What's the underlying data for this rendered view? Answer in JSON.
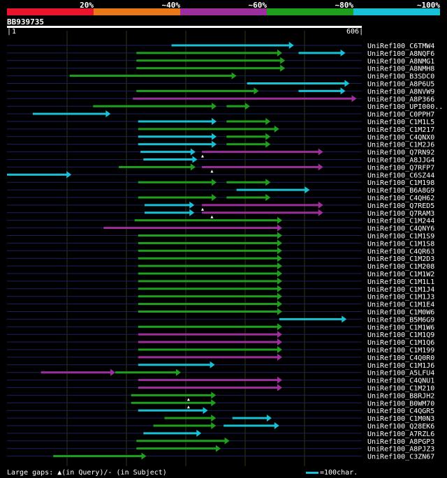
{
  "query": {
    "id": "BB939735",
    "start_label": "1",
    "end_label": "606",
    "length": 606
  },
  "identity_legend": {
    "labels": [
      "20%",
      "~40%",
      "~60%",
      "~80%",
      "~100%"
    ],
    "colors": [
      "#e8152c",
      "#e87818",
      "#9c2f9c",
      "#1ea01e",
      "#17c1d6"
    ]
  },
  "colors": {
    "background": "#000000",
    "track": "#1c1f5e",
    "gridline": "#283818"
  },
  "footer": {
    "gaps_text": "Large gaps: ▲(in Query)/- (in Subject)",
    "scale_text": "=100char."
  },
  "hits": [
    {
      "name": "UniRef100_C6TMW4",
      "segments": [
        [
          281,
          490,
          "cyan"
        ]
      ]
    },
    {
      "name": "UniRef100_A8NQF6",
      "segments": [
        [
          221,
          470,
          "green"
        ],
        [
          498,
          578,
          "cyan"
        ]
      ]
    },
    {
      "name": "UniRef100_A8NMG1",
      "segments": [
        [
          221,
          475,
          "green"
        ]
      ]
    },
    {
      "name": "UniRef100_A8NMH8",
      "segments": [
        [
          221,
          475,
          "green"
        ]
      ]
    },
    {
      "name": "UniRef100_B3SDC0",
      "segments": [
        [
          107,
          392,
          "green"
        ]
      ]
    },
    {
      "name": "UniRef100_A8P6U5",
      "segments": [
        [
          410,
          585,
          "cyan"
        ]
      ]
    },
    {
      "name": "UniRef100_A8NVW9",
      "segments": [
        [
          221,
          430,
          "green"
        ],
        [
          498,
          578,
          "cyan"
        ]
      ]
    },
    {
      "name": "UniRef100_A8P366",
      "segments": [
        [
          215,
          597,
          "magenta"
        ]
      ]
    },
    {
      "name": "UniRef100_UPI000..",
      "segments": [
        [
          147,
          358,
          "green"
        ],
        [
          375,
          415,
          "green"
        ]
      ]
    },
    {
      "name": "UniRef100_C0PPH7",
      "segments": [
        [
          44,
          177,
          "cyan"
        ]
      ]
    },
    {
      "name": "UniRef100_C1M1L5",
      "segments": [
        [
          224,
          358,
          "cyan"
        ],
        [
          375,
          450,
          "green"
        ]
      ]
    },
    {
      "name": "UniRef100_C1M217",
      "segments": [
        [
          224,
          465,
          "green"
        ]
      ]
    },
    {
      "name": "UniRef100_C4QNX0",
      "segments": [
        [
          224,
          358,
          "cyan"
        ],
        [
          375,
          450,
          "green"
        ]
      ]
    },
    {
      "name": "UniRef100_C1M2J6",
      "segments": [
        [
          224,
          358,
          "cyan"
        ],
        [
          375,
          450,
          "green"
        ]
      ]
    },
    {
      "name": "UniRef100_Q7RN92",
      "segments": [
        [
          228,
          322,
          "cyan"
        ],
        [
          333,
          540,
          "magenta"
        ]
      ],
      "gap": 334
    },
    {
      "name": "UniRef100_A8JJG4",
      "segments": [
        [
          233,
          325,
          "cyan"
        ]
      ]
    },
    {
      "name": "UniRef100_Q7RFP7",
      "segments": [
        [
          191,
          322,
          "green"
        ],
        [
          333,
          540,
          "magenta"
        ]
      ],
      "gap": 350
    },
    {
      "name": "UniRef100_C6SZ44",
      "segments": [
        [
          0,
          110,
          "cyan"
        ]
      ]
    },
    {
      "name": "UniRef100_C1M198",
      "segments": [
        [
          224,
          358,
          "green"
        ],
        [
          375,
          450,
          "green"
        ]
      ]
    },
    {
      "name": "UniRef100_B6A8G9",
      "segments": [
        [
          392,
          517,
          "cyan"
        ]
      ]
    },
    {
      "name": "UniRef100_C4QH62",
      "segments": [
        [
          224,
          358,
          "green"
        ],
        [
          375,
          450,
          "green"
        ]
      ]
    },
    {
      "name": "UniRef100_Q7RED5",
      "segments": [
        [
          235,
          320,
          "cyan"
        ],
        [
          333,
          540,
          "magenta"
        ]
      ],
      "gap": 334
    },
    {
      "name": "UniRef100_Q7RAM3",
      "segments": [
        [
          235,
          320,
          "cyan"
        ],
        [
          333,
          540,
          "magenta"
        ]
      ],
      "gap": 350
    },
    {
      "name": "UniRef100_C1M244",
      "segments": [
        [
          218,
          470,
          "green"
        ]
      ]
    },
    {
      "name": "UniRef100_C4QNY6",
      "segments": [
        [
          165,
          470,
          "magenta"
        ]
      ]
    },
    {
      "name": "UniRef100_C1M1S9",
      "segments": [
        [
          224,
          470,
          "green"
        ]
      ]
    },
    {
      "name": "UniRef100_C1M1S8",
      "segments": [
        [
          224,
          470,
          "green"
        ]
      ]
    },
    {
      "name": "UniRef100_C4QR63",
      "segments": [
        [
          224,
          470,
          "green"
        ]
      ]
    },
    {
      "name": "UniRef100_C1M2D3",
      "segments": [
        [
          224,
          470,
          "green"
        ]
      ]
    },
    {
      "name": "UniRef100_C1M208",
      "segments": [
        [
          224,
          470,
          "green"
        ]
      ]
    },
    {
      "name": "UniRef100_C1M1W2",
      "segments": [
        [
          224,
          470,
          "green"
        ]
      ]
    },
    {
      "name": "UniRef100_C1M1L1",
      "segments": [
        [
          224,
          470,
          "green"
        ]
      ]
    },
    {
      "name": "UniRef100_C1M1J4",
      "segments": [
        [
          224,
          470,
          "green"
        ]
      ]
    },
    {
      "name": "UniRef100_C1M1J3",
      "segments": [
        [
          224,
          470,
          "green"
        ]
      ]
    },
    {
      "name": "UniRef100_C1M1E4",
      "segments": [
        [
          224,
          470,
          "green"
        ]
      ]
    },
    {
      "name": "UniRef100_C1M0W6",
      "segments": [
        [
          224,
          470,
          "green"
        ]
      ]
    },
    {
      "name": "UniRef100_B5M6G9",
      "segments": [
        [
          465,
          580,
          "cyan"
        ]
      ]
    },
    {
      "name": "UniRef100_C1M1W6",
      "segments": [
        [
          224,
          470,
          "green"
        ]
      ]
    },
    {
      "name": "UniRef100_C1M1Q9",
      "segments": [
        [
          224,
          470,
          "magenta"
        ]
      ]
    },
    {
      "name": "UniRef100_C1M1Q6",
      "segments": [
        [
          224,
          470,
          "magenta"
        ]
      ]
    },
    {
      "name": "UniRef100_C1M199",
      "segments": [
        [
          224,
          470,
          "green"
        ]
      ]
    },
    {
      "name": "UniRef100_C4Q0R0",
      "segments": [
        [
          224,
          470,
          "magenta"
        ]
      ]
    },
    {
      "name": "UniRef100_C1M1J6",
      "segments": [
        [
          224,
          355,
          "cyan"
        ]
      ]
    },
    {
      "name": "UniRef100_A5LFU4",
      "segments": [
        [
          58,
          185,
          "magenta"
        ],
        [
          185,
          297,
          "green"
        ]
      ]
    },
    {
      "name": "UniRef100_C4QNU1",
      "segments": [
        [
          224,
          470,
          "magenta"
        ]
      ]
    },
    {
      "name": "UniRef100_C1M210",
      "segments": [
        [
          224,
          470,
          "magenta"
        ]
      ]
    },
    {
      "name": "UniRef100_B8RJH2",
      "segments": [
        [
          212,
          357,
          "green"
        ]
      ],
      "gap": 310
    },
    {
      "name": "UniRef100_B0WM70",
      "segments": [
        [
          212,
          357,
          "green"
        ]
      ],
      "gap": 310
    },
    {
      "name": "UniRef100_C4QGR5",
      "segments": [
        [
          224,
          343,
          "cyan"
        ]
      ]
    },
    {
      "name": "UniRef100_C1M0N3",
      "segments": [
        [
          269,
          357,
          "green"
        ],
        [
          385,
          452,
          "cyan"
        ]
      ]
    },
    {
      "name": "UniRef100_Q28EK6",
      "segments": [
        [
          250,
          357,
          "green"
        ],
        [
          370,
          465,
          "cyan"
        ]
      ]
    },
    {
      "name": "UniRef100_A7RZL6",
      "segments": [
        [
          233,
          332,
          "cyan"
        ]
      ]
    },
    {
      "name": "UniRef100_A8PGP3",
      "segments": [
        [
          221,
          380,
          "green"
        ]
      ]
    },
    {
      "name": "UniRef100_A8PJZ3",
      "segments": [
        [
          221,
          365,
          "green"
        ]
      ]
    },
    {
      "name": "UniRef100_C3ZN67",
      "segments": [
        [
          79,
          238,
          "green"
        ]
      ]
    }
  ]
}
